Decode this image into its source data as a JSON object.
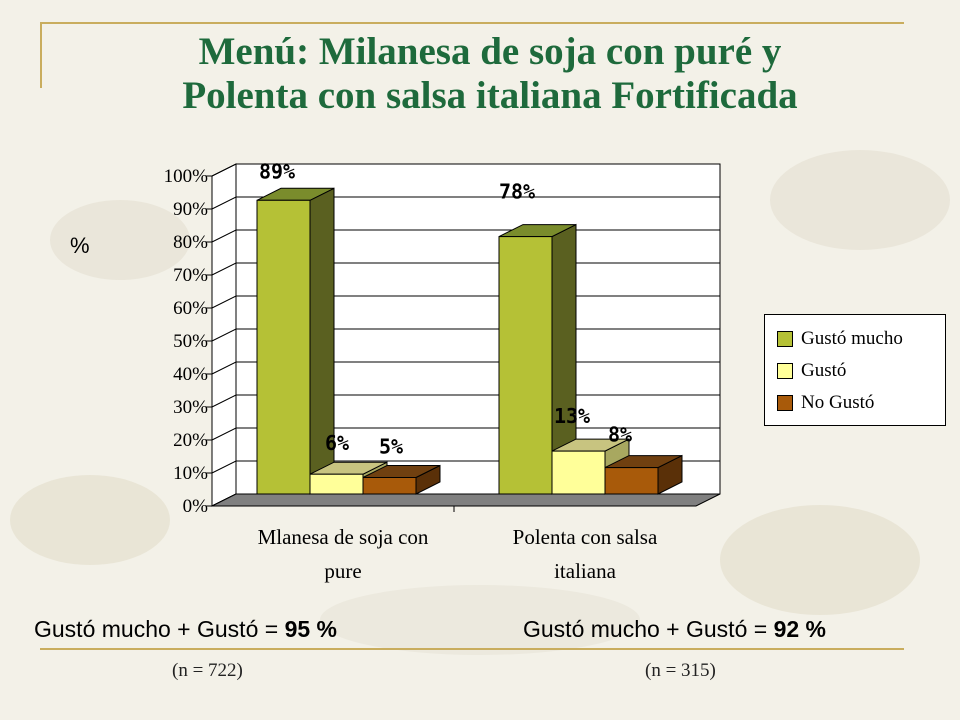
{
  "title_line1": "Menú: Milanesa de soja con puré y",
  "title_line2": "Polenta con salsa italiana Fortificada",
  "colors": {
    "title": "#1e6a3c",
    "frame": "#c9ad5e"
  },
  "summary": [
    {
      "prefix": "Gustó mucho + Gustó = ",
      "value": "95 %",
      "n": "(n = 722)"
    },
    {
      "prefix": "Gustó mucho + Gustó = ",
      "value": "92 %",
      "n": "(n = 315)"
    }
  ],
  "chart_data": {
    "type": "bar",
    "ylabel": "%",
    "ylim": [
      0,
      100
    ],
    "yticks": [
      "0%",
      "10%",
      "20%",
      "30%",
      "40%",
      "50%",
      "60%",
      "70%",
      "80%",
      "90%",
      "100%"
    ],
    "categories": [
      [
        "Mlanesa de soja con",
        "pure"
      ],
      [
        "Polenta con salsa",
        "italiana"
      ]
    ],
    "series": [
      {
        "name": "Gustó mucho",
        "values": [
          89,
          78
        ],
        "labels": [
          "89%",
          "78%"
        ],
        "color": "#b5c136",
        "side": "#5a6020",
        "top": "#7a8c2c"
      },
      {
        "name": "Gustó",
        "values": [
          6,
          13
        ],
        "labels": [
          "6%",
          "13%"
        ],
        "color": "#ffff99",
        "side": "#a8a860",
        "top": "#c8c480"
      },
      {
        "name": "No Gustó",
        "values": [
          5,
          8
        ],
        "labels": [
          "5%",
          "8%"
        ],
        "color": "#a85a0a",
        "side": "#5a3008",
        "top": "#704010"
      }
    ],
    "legend_position": "right",
    "grid": true
  }
}
